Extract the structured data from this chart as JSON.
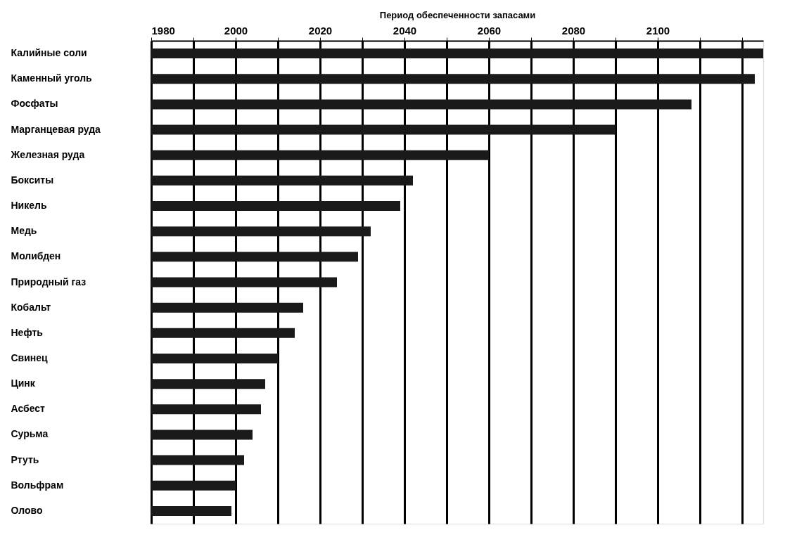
{
  "chart_data": {
    "type": "bar",
    "orientation": "horizontal",
    "xlabel": "Период обеспеченности запасами",
    "categories": [
      "Калийные соли",
      "Каменный уголь",
      "Фосфаты",
      "Марганцевая руда",
      "Железная руда",
      "Бокситы",
      "Никель",
      "Медь",
      "Молибден",
      "Природный газ",
      "Кобальт",
      "Нефть",
      "Свинец",
      "Цинк",
      "Асбест",
      "Сурьма",
      "Ртуть",
      "Вольфрам",
      "Олово"
    ],
    "values": [
      145,
      143,
      128,
      110,
      80,
      62,
      59,
      52,
      49,
      44,
      36,
      34,
      30,
      27,
      26,
      24,
      22,
      20,
      19
    ],
    "base": [
      1980,
      1980,
      1980,
      1980,
      1980,
      1980,
      1980,
      1980,
      1980,
      1980,
      1980,
      1980,
      1980,
      1980,
      1980,
      1980,
      1980,
      1980,
      1980
    ],
    "color": "#1a1a1a",
    "xlim": [
      1980,
      2125
    ],
    "xticks": [
      1980,
      {
        "value": 1990,
        "label": null
      },
      2000,
      {
        "value": 2010,
        "label": null
      },
      2020,
      {
        "value": 2030,
        "label": null
      },
      2040,
      {
        "value": 2050,
        "label": null
      },
      2060,
      {
        "value": 2070,
        "label": null
      },
      2080,
      {
        "value": 2090,
        "label": null
      },
      2100,
      {
        "value": 2110,
        "label": null
      },
      {
        "value": 2120,
        "label": null
      }
    ],
    "grid": "x"
  }
}
